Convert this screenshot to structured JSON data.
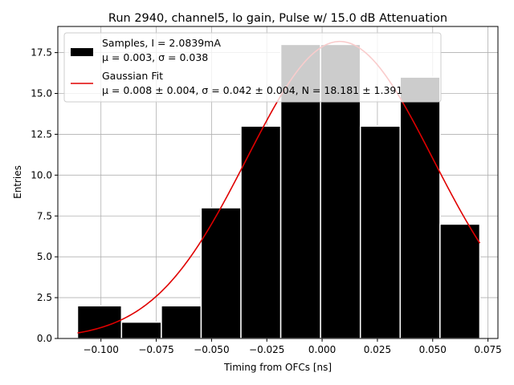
{
  "chart_data": {
    "type": "bar",
    "title": "Run 2940, channel5, lo gain, Pulse w/ 15.0 dB Attenuation",
    "xlabel": "Timing from OFCs [ns]",
    "ylabel": "Entries",
    "xlim": [
      -0.1195,
      0.0795
    ],
    "ylim": [
      0,
      19.1
    ],
    "xticks": [
      -0.1,
      -0.075,
      -0.05,
      -0.025,
      0.0,
      0.025,
      0.05,
      0.075
    ],
    "xtick_labels": [
      "−0.100",
      "−0.075",
      "−0.050",
      "−0.025",
      "0.000",
      "0.025",
      "0.050",
      "0.075"
    ],
    "yticks": [
      0,
      2.5,
      5,
      7.5,
      10,
      12.5,
      15,
      17.5
    ],
    "ytick_labels": [
      "0.0",
      "2.5",
      "5.0",
      "7.5",
      "10.0",
      "12.5",
      "15.0",
      "17.5"
    ],
    "grid": true,
    "legend_position": "top-left",
    "histogram": {
      "name": "Samples",
      "bin_edges": [
        -0.1106,
        -0.0907,
        -0.0727,
        -0.0547,
        -0.0367,
        -0.0187,
        -0.0007,
        0.0173,
        0.0353,
        0.0533,
        0.0713
      ],
      "counts": [
        2,
        1,
        2,
        8,
        13,
        18,
        18,
        13,
        16,
        7
      ],
      "color": "#000000",
      "edgecolor": "#ffffff"
    },
    "fit": {
      "name": "Gaussian Fit",
      "mu": 0.008,
      "sigma": 0.042,
      "N": 18.181,
      "x_range": [
        -0.1106,
        0.0713
      ],
      "color": "#e00000"
    },
    "legend": [
      {
        "kind": "patch",
        "line1": "Samples, I = 2.0839mA",
        "line2": "μ = 0.003, σ = 0.038",
        "color": "#000000"
      },
      {
        "kind": "line",
        "line1": "Gaussian Fit",
        "line2": "μ = 0.008 ± 0.004, σ = 0.042 ± 0.004, N = 18.181 ± 1.391",
        "color": "#e00000"
      }
    ]
  }
}
